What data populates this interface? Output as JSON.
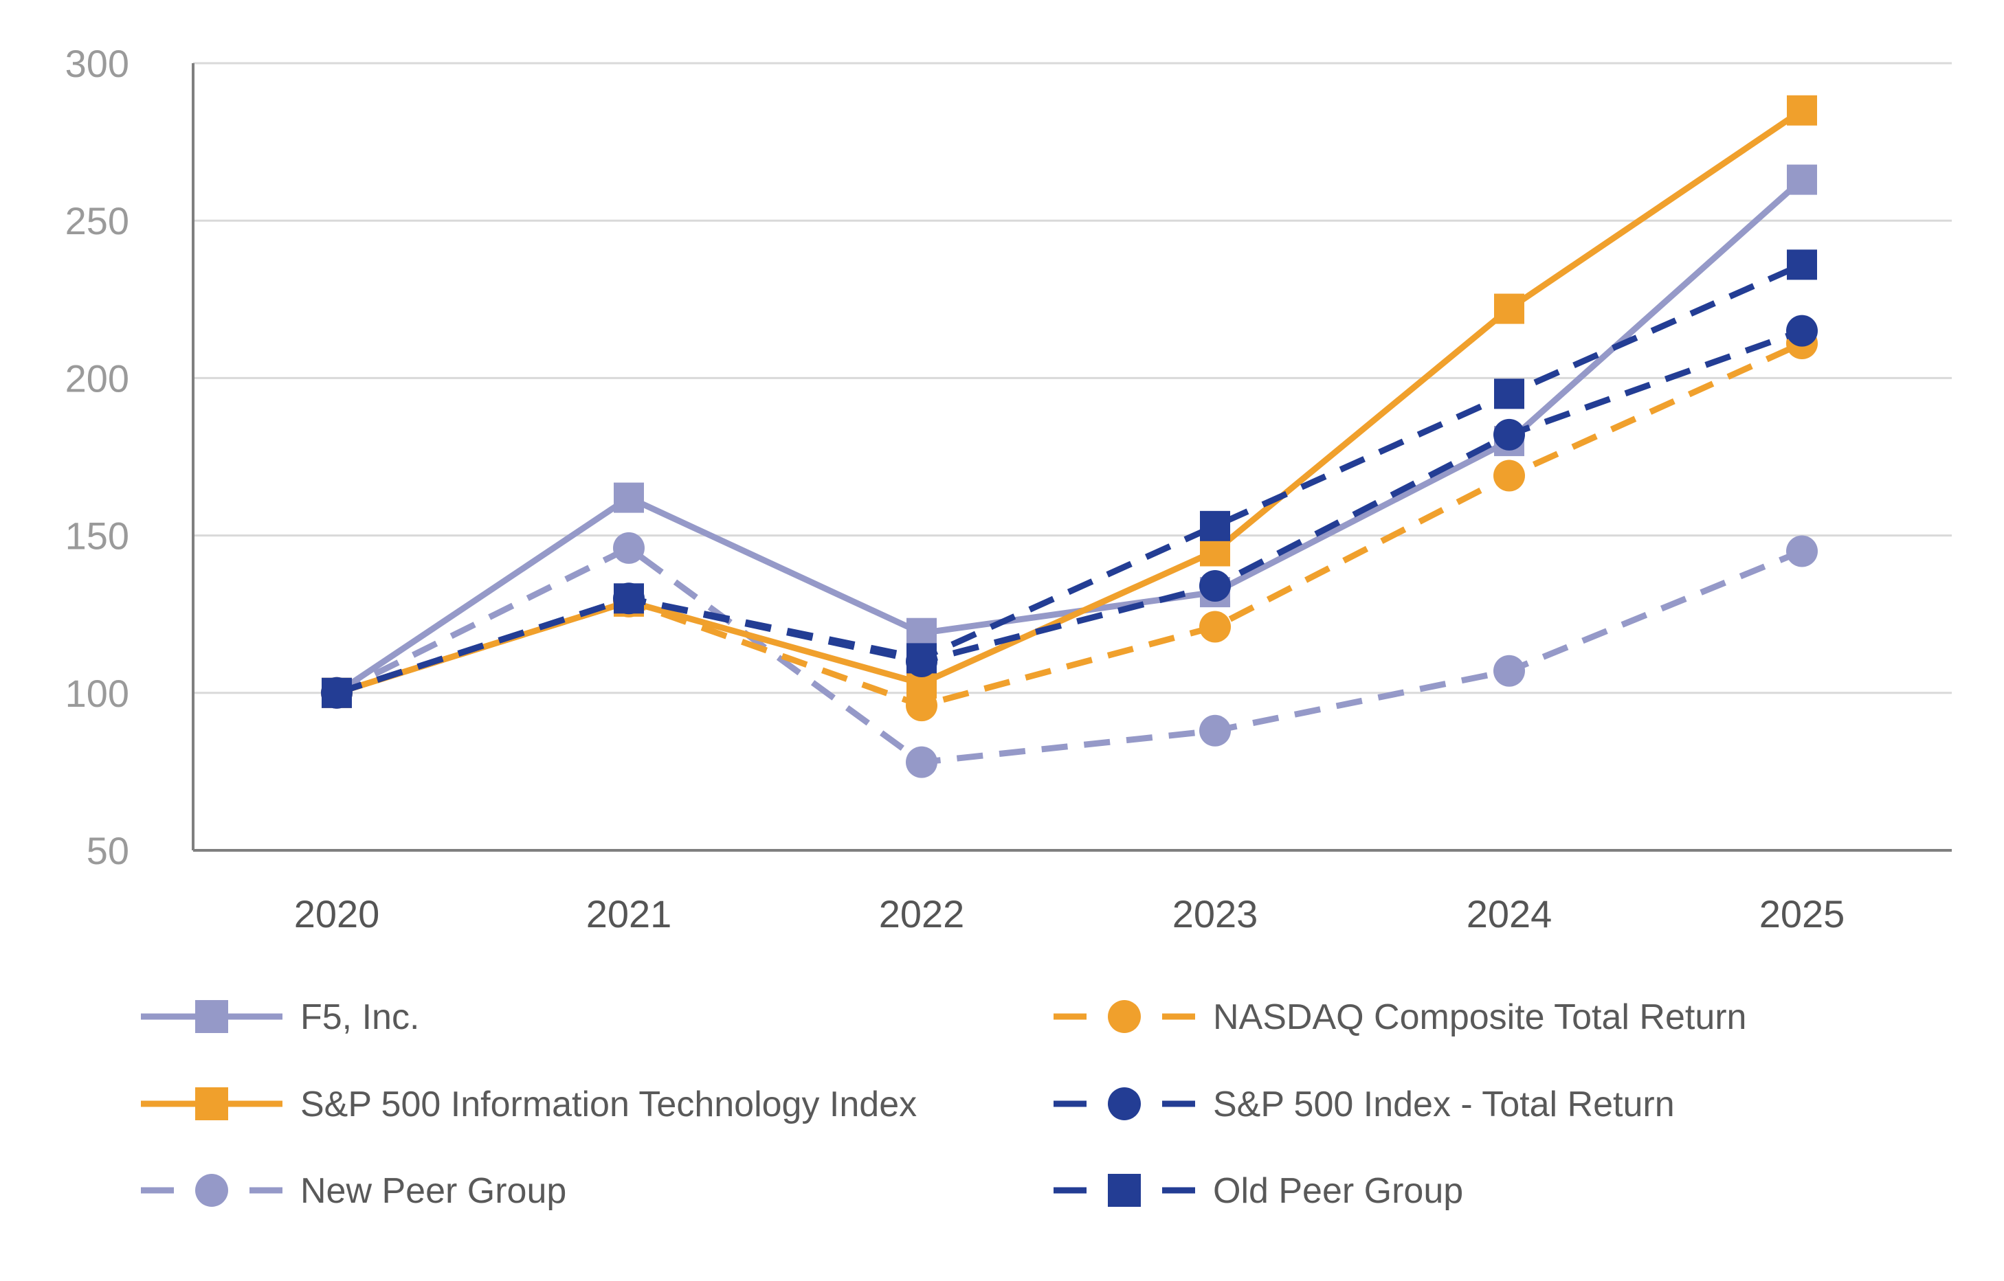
{
  "chart_data": {
    "type": "line",
    "title": "",
    "xlabel": "",
    "ylabel": "",
    "categories": [
      "2020",
      "2021",
      "2022",
      "2023",
      "2024",
      "2025"
    ],
    "ylim": [
      50,
      300
    ],
    "yticks": [
      "50",
      "100",
      "150",
      "200",
      "250",
      "300"
    ],
    "grid": true,
    "legend_position": "bottom",
    "series": [
      {
        "name": "F5, Inc.",
        "values": [
          100,
          162,
          119,
          132,
          180,
          263
        ],
        "color": "#9599c8",
        "dashed": false,
        "marker": "square"
      },
      {
        "name": "NASDAQ Composite Total Return",
        "values": [
          100,
          129,
          96,
          121,
          169,
          211
        ],
        "color": "#f0a02c",
        "dashed": true,
        "marker": "circle"
      },
      {
        "name": "S&P 500 Information Technology Index",
        "values": [
          100,
          129,
          103,
          145,
          222,
          285
        ],
        "color": "#f0a02c",
        "dashed": false,
        "marker": "square"
      },
      {
        "name": "S&P 500 Index - Total Return",
        "values": [
          100,
          130,
          110,
          134,
          182,
          215
        ],
        "color": "#233d94",
        "dashed": true,
        "marker": "circle"
      },
      {
        "name": "New Peer Group",
        "values": [
          100,
          146,
          78,
          88,
          107,
          145
        ],
        "color": "#9599c8",
        "dashed": true,
        "marker": "circle"
      },
      {
        "name": "Old Peer Group",
        "values": [
          100,
          130,
          111,
          153,
          195,
          236
        ],
        "color": "#233d94",
        "dashed": true,
        "marker": "square"
      }
    ]
  }
}
